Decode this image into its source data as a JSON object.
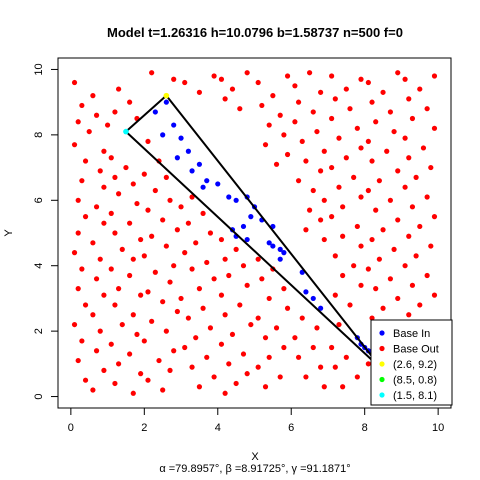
{
  "chart_data": {
    "type": "scatter",
    "title": "Model t=1.26316 h=10.0796 b=1.58737 n=500 f=0",
    "subtitle": "α =79.8957°,  β =8.91725°,  γ =91.1871°",
    "xlabel": "X",
    "ylabel": "Y",
    "xlim": [
      -0.35,
      10.35
    ],
    "ylim": [
      -0.35,
      10.35
    ],
    "xticks": [
      0,
      2,
      4,
      6,
      8,
      10
    ],
    "yticks": [
      0,
      2,
      4,
      6,
      8,
      10
    ],
    "grid": false,
    "legend_position": "bottom-right",
    "triangle": [
      [
        2.6,
        9.2
      ],
      [
        8.5,
        0.8
      ],
      [
        1.5,
        8.1
      ]
    ],
    "colors": {
      "base_in": "#0000ff",
      "base_out": "#ff0000",
      "vertex_a": "#ffff00",
      "vertex_b": "#00ff00",
      "vertex_c": "#00ffff",
      "triangle": "#000000"
    },
    "series": [
      {
        "name": "Base In",
        "color": "#0000ff",
        "points": [
          [
            2.6,
            9.0
          ],
          [
            2.3,
            8.7
          ],
          [
            2.8,
            8.3
          ],
          [
            2.5,
            8.0
          ],
          [
            3.0,
            7.9
          ],
          [
            3.2,
            7.5
          ],
          [
            2.9,
            7.3
          ],
          [
            3.5,
            7.1
          ],
          [
            3.3,
            6.9
          ],
          [
            3.7,
            6.6
          ],
          [
            3.6,
            6.4
          ],
          [
            4.0,
            6.5
          ],
          [
            4.3,
            6.1
          ],
          [
            4.5,
            6.0
          ],
          [
            4.8,
            6.1
          ],
          [
            5.0,
            5.8
          ],
          [
            4.9,
            5.5
          ],
          [
            5.2,
            5.4
          ],
          [
            4.7,
            5.2
          ],
          [
            5.5,
            5.2
          ],
          [
            4.4,
            5.1
          ],
          [
            4.5,
            4.9
          ],
          [
            4.8,
            4.8
          ],
          [
            5.4,
            4.7
          ],
          [
            5.5,
            4.6
          ],
          [
            5.7,
            4.5
          ],
          [
            5.8,
            4.4
          ],
          [
            5.7,
            4.2
          ],
          [
            6.3,
            3.8
          ],
          [
            6.4,
            3.2
          ],
          [
            6.6,
            3.0
          ],
          [
            6.8,
            2.7
          ],
          [
            7.8,
            1.8
          ],
          [
            7.9,
            1.6
          ],
          [
            8.0,
            1.5
          ],
          [
            8.1,
            1.4
          ],
          [
            8.2,
            1.3
          ]
        ]
      },
      {
        "name": "Base Out",
        "color": "#ff0000",
        "points": [
          [
            0.1,
            9.6
          ],
          [
            0.6,
            9.2
          ],
          [
            0.3,
            8.9
          ],
          [
            0.7,
            8.6
          ],
          [
            0.2,
            8.4
          ],
          [
            1.0,
            8.3
          ],
          [
            0.5,
            8.1
          ],
          [
            0.1,
            7.7
          ],
          [
            0.9,
            7.5
          ],
          [
            0.4,
            7.2
          ],
          [
            0.8,
            6.9
          ],
          [
            0.3,
            6.6
          ],
          [
            0.9,
            6.4
          ],
          [
            0.2,
            6.0
          ],
          [
            0.7,
            5.8
          ],
          [
            0.4,
            5.5
          ],
          [
            0.9,
            5.3
          ],
          [
            0.2,
            5.0
          ],
          [
            0.6,
            4.7
          ],
          [
            0.1,
            4.4
          ],
          [
            0.8,
            4.2
          ],
          [
            0.3,
            3.9
          ],
          [
            0.7,
            3.6
          ],
          [
            0.2,
            3.3
          ],
          [
            0.9,
            3.1
          ],
          [
            0.4,
            2.8
          ],
          [
            0.6,
            2.5
          ],
          [
            0.1,
            2.2
          ],
          [
            0.8,
            2.0
          ],
          [
            0.3,
            1.7
          ],
          [
            0.7,
            1.4
          ],
          [
            0.2,
            1.1
          ],
          [
            0.9,
            0.8
          ],
          [
            0.4,
            0.5
          ],
          [
            0.6,
            0.2
          ],
          [
            1.3,
            9.4
          ],
          [
            1.6,
            9.0
          ],
          [
            1.2,
            8.7
          ],
          [
            1.8,
            8.5
          ],
          [
            1.1,
            7.3
          ],
          [
            1.5,
            7.0
          ],
          [
            1.2,
            6.7
          ],
          [
            1.7,
            6.5
          ],
          [
            1.3,
            6.2
          ],
          [
            1.8,
            5.9
          ],
          [
            1.1,
            5.6
          ],
          [
            1.6,
            5.3
          ],
          [
            1.2,
            5.0
          ],
          [
            1.9,
            4.8
          ],
          [
            1.4,
            4.5
          ],
          [
            1.7,
            4.2
          ],
          [
            1.1,
            3.9
          ],
          [
            1.6,
            3.7
          ],
          [
            1.3,
            3.3
          ],
          [
            1.9,
            3.1
          ],
          [
            1.2,
            2.8
          ],
          [
            1.7,
            2.5
          ],
          [
            1.4,
            2.2
          ],
          [
            1.8,
            1.9
          ],
          [
            1.1,
            1.6
          ],
          [
            1.6,
            1.3
          ],
          [
            1.3,
            1.0
          ],
          [
            1.9,
            0.7
          ],
          [
            1.2,
            0.4
          ],
          [
            1.7,
            0.1
          ],
          [
            2.2,
            9.9
          ],
          [
            2.8,
            9.7
          ],
          [
            2.1,
            7.8
          ],
          [
            2.4,
            7.2
          ],
          [
            2.0,
            6.8
          ],
          [
            2.6,
            6.7
          ],
          [
            2.3,
            6.3
          ],
          [
            2.7,
            6.0
          ],
          [
            2.1,
            5.7
          ],
          [
            2.5,
            5.4
          ],
          [
            2.9,
            5.1
          ],
          [
            2.2,
            4.9
          ],
          [
            2.6,
            4.6
          ],
          [
            2.0,
            4.3
          ],
          [
            2.8,
            4.0
          ],
          [
            2.3,
            3.8
          ],
          [
            2.7,
            3.5
          ],
          [
            2.1,
            3.2
          ],
          [
            2.5,
            2.9
          ],
          [
            2.9,
            2.6
          ],
          [
            2.2,
            2.3
          ],
          [
            2.6,
            2.0
          ],
          [
            2.0,
            1.7
          ],
          [
            2.8,
            1.4
          ],
          [
            2.4,
            1.1
          ],
          [
            2.7,
            0.8
          ],
          [
            2.1,
            0.5
          ],
          [
            2.5,
            0.2
          ],
          [
            3.1,
            9.6
          ],
          [
            3.5,
            9.3
          ],
          [
            3.9,
            9.8
          ],
          [
            3.3,
            6.1
          ],
          [
            3.0,
            5.8
          ],
          [
            3.6,
            5.6
          ],
          [
            3.2,
            5.3
          ],
          [
            3.8,
            5.0
          ],
          [
            3.4,
            4.7
          ],
          [
            3.1,
            4.4
          ],
          [
            3.7,
            4.1
          ],
          [
            3.3,
            3.9
          ],
          [
            3.9,
            3.6
          ],
          [
            3.5,
            3.3
          ],
          [
            3.0,
            3.0
          ],
          [
            3.6,
            2.7
          ],
          [
            3.2,
            2.4
          ],
          [
            3.8,
            2.1
          ],
          [
            3.4,
            1.8
          ],
          [
            3.1,
            1.5
          ],
          [
            3.7,
            1.2
          ],
          [
            3.3,
            0.9
          ],
          [
            3.9,
            0.6
          ],
          [
            3.5,
            0.3
          ],
          [
            4.1,
            9.7
          ],
          [
            4.4,
            9.4
          ],
          [
            4.8,
            9.9
          ],
          [
            4.2,
            9.1
          ],
          [
            4.6,
            8.8
          ],
          [
            4.1,
            4.8
          ],
          [
            4.5,
            4.5
          ],
          [
            4.2,
            4.2
          ],
          [
            4.7,
            4.0
          ],
          [
            4.3,
            3.7
          ],
          [
            4.8,
            3.4
          ],
          [
            4.1,
            3.1
          ],
          [
            4.6,
            2.8
          ],
          [
            4.2,
            2.5
          ],
          [
            4.9,
            2.2
          ],
          [
            4.4,
            1.9
          ],
          [
            4.1,
            1.6
          ],
          [
            4.7,
            1.3
          ],
          [
            4.3,
            1.0
          ],
          [
            4.8,
            0.7
          ],
          [
            4.5,
            0.4
          ],
          [
            4.2,
            0.1
          ],
          [
            5.1,
            9.6
          ],
          [
            5.5,
            9.2
          ],
          [
            5.9,
            9.8
          ],
          [
            5.2,
            8.9
          ],
          [
            5.7,
            8.6
          ],
          [
            5.4,
            8.3
          ],
          [
            5.8,
            8.0
          ],
          [
            5.3,
            7.7
          ],
          [
            5.9,
            7.4
          ],
          [
            5.6,
            7.1
          ],
          [
            5.1,
            4.2
          ],
          [
            5.5,
            3.9
          ],
          [
            5.2,
            3.6
          ],
          [
            5.8,
            3.3
          ],
          [
            5.4,
            3.0
          ],
          [
            5.9,
            2.7
          ],
          [
            5.1,
            2.4
          ],
          [
            5.6,
            2.1
          ],
          [
            5.3,
            1.8
          ],
          [
            5.8,
            1.5
          ],
          [
            5.4,
            1.2
          ],
          [
            5.1,
            0.9
          ],
          [
            5.7,
            0.6
          ],
          [
            5.3,
            0.3
          ],
          [
            6.1,
            9.5
          ],
          [
            6.5,
            9.9
          ],
          [
            6.8,
            9.3
          ],
          [
            6.2,
            9.0
          ],
          [
            6.6,
            8.7
          ],
          [
            6.1,
            8.4
          ],
          [
            6.7,
            8.1
          ],
          [
            6.3,
            7.8
          ],
          [
            6.9,
            7.5
          ],
          [
            6.4,
            7.2
          ],
          [
            6.8,
            6.9
          ],
          [
            6.2,
            6.6
          ],
          [
            6.6,
            6.3
          ],
          [
            6.9,
            6.0
          ],
          [
            6.5,
            5.7
          ],
          [
            6.8,
            5.4
          ],
          [
            6.4,
            5.1
          ],
          [
            6.9,
            4.8
          ],
          [
            6.3,
            2.4
          ],
          [
            6.7,
            2.1
          ],
          [
            6.1,
            1.8
          ],
          [
            6.6,
            1.5
          ],
          [
            6.2,
            1.2
          ],
          [
            6.8,
            0.9
          ],
          [
            6.4,
            0.6
          ],
          [
            6.9,
            0.3
          ],
          [
            7.1,
            9.8
          ],
          [
            7.5,
            9.4
          ],
          [
            7.9,
            9.7
          ],
          [
            7.2,
            9.1
          ],
          [
            7.6,
            8.8
          ],
          [
            7.1,
            8.5
          ],
          [
            7.8,
            8.2
          ],
          [
            7.3,
            7.9
          ],
          [
            7.9,
            7.6
          ],
          [
            7.5,
            7.3
          ],
          [
            7.1,
            7.0
          ],
          [
            7.7,
            6.7
          ],
          [
            7.3,
            6.4
          ],
          [
            7.9,
            6.1
          ],
          [
            7.4,
            5.8
          ],
          [
            7.1,
            5.5
          ],
          [
            7.8,
            5.2
          ],
          [
            7.4,
            4.9
          ],
          [
            7.9,
            4.6
          ],
          [
            7.2,
            4.3
          ],
          [
            7.7,
            4.0
          ],
          [
            7.4,
            3.7
          ],
          [
            7.9,
            3.4
          ],
          [
            7.2,
            3.1
          ],
          [
            7.6,
            2.8
          ],
          [
            7.3,
            2.2
          ],
          [
            7.1,
            1.5
          ],
          [
            7.5,
            1.2
          ],
          [
            7.2,
            0.9
          ],
          [
            7.8,
            0.6
          ],
          [
            7.4,
            0.3
          ],
          [
            8.1,
            9.6
          ],
          [
            8.5,
            9.3
          ],
          [
            8.9,
            9.9
          ],
          [
            8.2,
            9.0
          ],
          [
            8.7,
            8.7
          ],
          [
            8.3,
            8.4
          ],
          [
            8.8,
            8.1
          ],
          [
            8.1,
            7.8
          ],
          [
            8.6,
            7.5
          ],
          [
            8.2,
            7.2
          ],
          [
            8.9,
            6.9
          ],
          [
            8.4,
            6.6
          ],
          [
            8.1,
            6.3
          ],
          [
            8.7,
            6.0
          ],
          [
            8.3,
            5.7
          ],
          [
            8.9,
            5.4
          ],
          [
            8.5,
            5.1
          ],
          [
            8.2,
            4.8
          ],
          [
            8.8,
            4.5
          ],
          [
            8.4,
            4.2
          ],
          [
            8.1,
            3.9
          ],
          [
            8.7,
            3.6
          ],
          [
            8.3,
            3.3
          ],
          [
            8.9,
            3.0
          ],
          [
            8.5,
            2.7
          ],
          [
            8.2,
            2.4
          ],
          [
            8.6,
            2.1
          ],
          [
            8.1,
            1.0
          ],
          [
            8.8,
            0.5
          ],
          [
            8.4,
            0.2
          ],
          [
            9.1,
            9.7
          ],
          [
            9.5,
            9.4
          ],
          [
            9.9,
            9.8
          ],
          [
            9.2,
            9.1
          ],
          [
            9.7,
            8.8
          ],
          [
            9.3,
            8.5
          ],
          [
            9.9,
            8.2
          ],
          [
            9.1,
            7.9
          ],
          [
            9.6,
            7.6
          ],
          [
            9.2,
            7.3
          ],
          [
            9.8,
            7.0
          ],
          [
            9.4,
            6.7
          ],
          [
            9.1,
            6.4
          ],
          [
            9.7,
            6.1
          ],
          [
            9.3,
            5.8
          ],
          [
            9.9,
            5.5
          ],
          [
            9.5,
            5.2
          ],
          [
            9.2,
            4.9
          ],
          [
            9.8,
            4.6
          ],
          [
            9.4,
            4.3
          ],
          [
            9.1,
            4.0
          ],
          [
            9.7,
            3.7
          ],
          [
            9.3,
            3.4
          ],
          [
            9.9,
            3.1
          ],
          [
            9.5,
            2.8
          ],
          [
            9.2,
            2.5
          ],
          [
            9.8,
            2.2
          ]
        ]
      },
      {
        "name": "(2.6, 9.2)",
        "color": "#ffff00",
        "points": [
          [
            2.6,
            9.2
          ]
        ]
      },
      {
        "name": "(8.5, 0.8)",
        "color": "#00ff00",
        "points": [
          [
            8.5,
            0.8
          ]
        ]
      },
      {
        "name": "(1.5, 8.1)",
        "color": "#00ffff",
        "points": [
          [
            1.5,
            8.1
          ]
        ]
      }
    ]
  }
}
